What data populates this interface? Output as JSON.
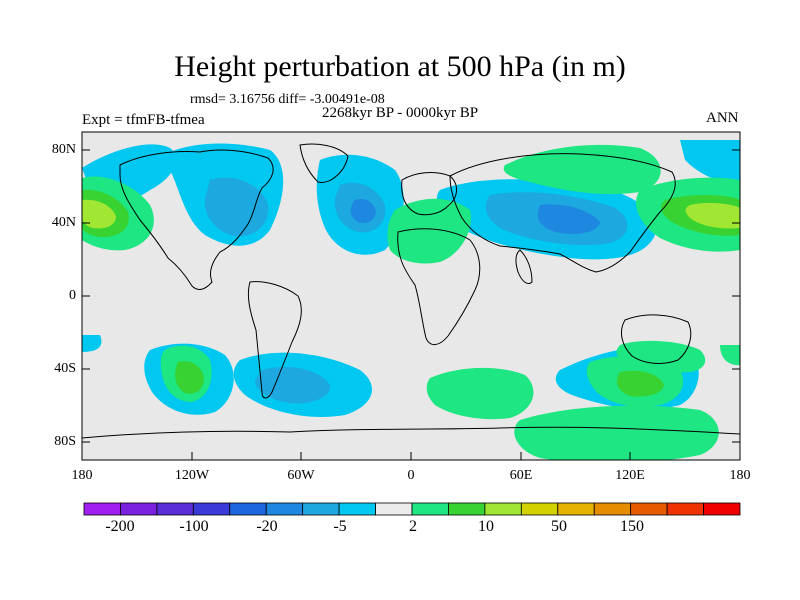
{
  "title": "Height perturbation at 500 hPa (in m)",
  "stats_line": "rmsd= 3.16756 diff= -3.00491e-08",
  "period_label": "2268kyr BP - 0000kyr BP",
  "experiment_label": "Expt = tfmFB-tfmea",
  "season_label": "ANN",
  "map": {
    "projection": "cylindrical-equidistant",
    "lon_range": [
      -180,
      180
    ],
    "lat_range": [
      -90,
      90
    ],
    "y_ticks": [
      "80N",
      "40N",
      "0",
      "40S",
      "80S"
    ],
    "x_ticks": [
      "180",
      "120W",
      "60W",
      "0",
      "60E",
      "120E",
      "180"
    ],
    "background_color": "#e8e8e8",
    "coastline_color": "#000000"
  },
  "colorbar": {
    "colors": [
      "#a020f0",
      "#7b22e0",
      "#5a2dd8",
      "#3a3ad8",
      "#1e66e0",
      "#1e88e0",
      "#1ea8e0",
      "#00c8f0",
      "#ebebeb",
      "#1ee682",
      "#38d232",
      "#a0e632",
      "#d2d200",
      "#e6b400",
      "#e68c00",
      "#e65a00",
      "#f03200",
      "#f00000"
    ],
    "labels": [
      "-200",
      "-100",
      "-20",
      "-5",
      "2",
      "10",
      "50",
      "150"
    ]
  }
}
